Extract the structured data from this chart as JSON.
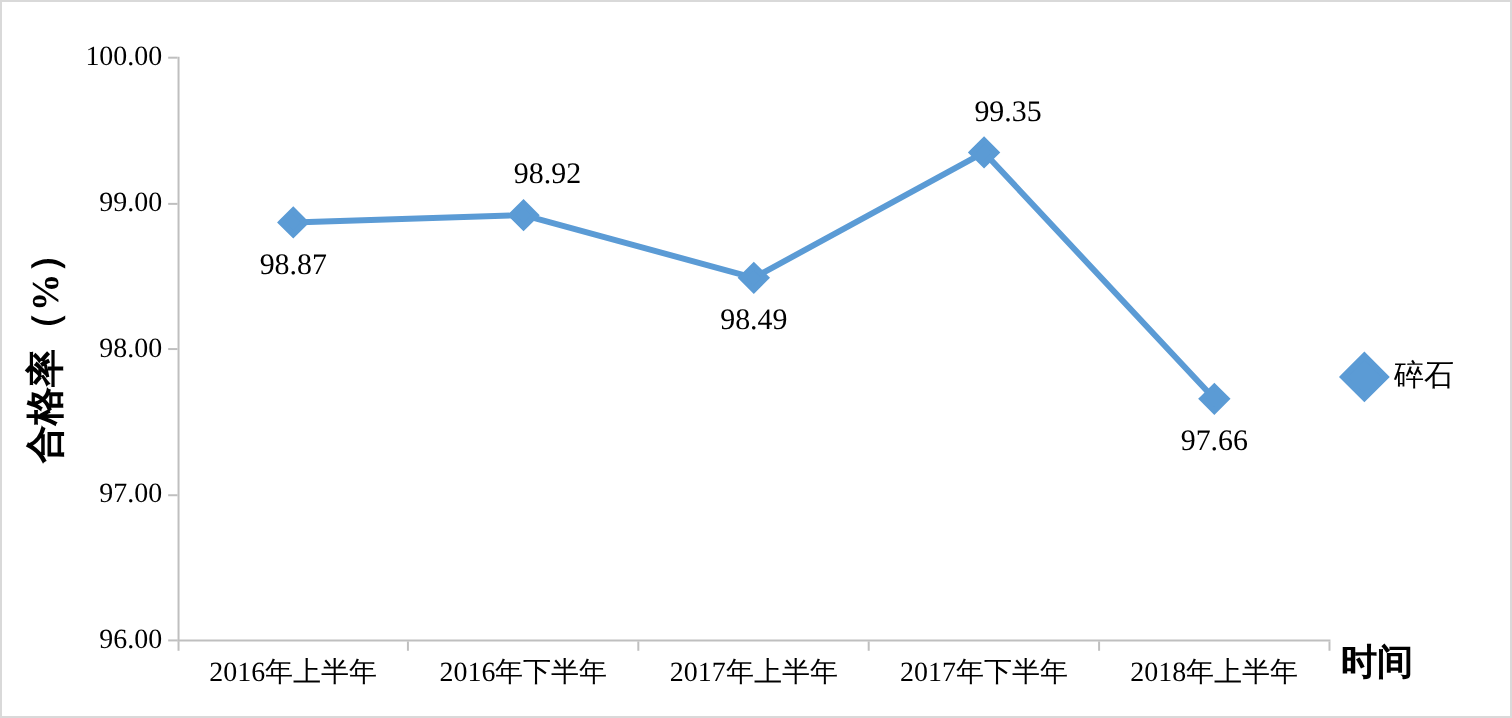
{
  "chart_data": {
    "type": "line",
    "ylabel": "合格率（%）",
    "xlabel": "时间",
    "categories": [
      "2016年上半年",
      "2016年下半年",
      "2017年上半年",
      "2017年下半年",
      "2018年上半年"
    ],
    "series": [
      {
        "name": "碎石",
        "color": "#5b9bd5",
        "values": [
          98.87,
          98.92,
          98.49,
          99.35,
          97.66
        ]
      }
    ],
    "ylim": [
      96,
      100
    ],
    "yticks": [
      {
        "value": 96,
        "label": "96.00"
      },
      {
        "value": 97,
        "label": "97.00"
      },
      {
        "value": 98,
        "label": "98.00"
      },
      {
        "value": 99,
        "label": "99.00"
      },
      {
        "value": 100,
        "label": "100.00"
      }
    ],
    "grid": false,
    "legend": "right",
    "marker": "diamond",
    "line_style": "solid",
    "data_labels": true
  }
}
